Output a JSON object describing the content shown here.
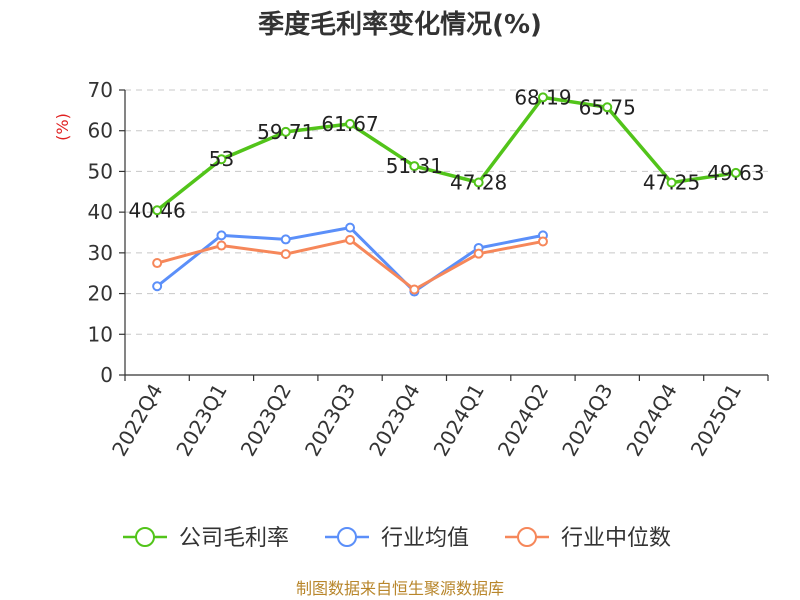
{
  "chart_data": {
    "type": "line",
    "title": "季度毛利率变化情况(%)",
    "ylabel": "(%)",
    "xlabel": "",
    "ylim": [
      0,
      70
    ],
    "yticks": [
      0,
      10,
      20,
      30,
      40,
      50,
      60,
      70
    ],
    "grid": "horizontal dashed",
    "legend_position": "bottom",
    "categories": [
      "2022Q4",
      "2023Q1",
      "2023Q2",
      "2023Q3",
      "2023Q4",
      "2024Q1",
      "2024Q2",
      "2024Q3",
      "2024Q4",
      "2025Q1"
    ],
    "series": [
      {
        "name": "公司毛利率",
        "color": "#52c41a",
        "values": [
          40.46,
          53,
          59.71,
          61.67,
          51.31,
          47.28,
          68.19,
          65.75,
          47.25,
          49.63
        ],
        "labels": [
          "40.46",
          "53",
          "59.71",
          "61.67",
          "51.31",
          "47.28",
          "68.19",
          "65.75",
          "47.25",
          "49.63"
        ]
      },
      {
        "name": "行业均值",
        "color": "#5b8ff9",
        "values": [
          21.8,
          34.3,
          33.3,
          36.2,
          20.5,
          31.2,
          34.3,
          null,
          null,
          null
        ]
      },
      {
        "name": "行业中位数",
        "color": "#f6875a",
        "values": [
          27.5,
          31.8,
          29.7,
          33.2,
          21.0,
          29.8,
          32.8,
          null,
          null,
          null
        ]
      }
    ]
  },
  "source_text": "制图数据来自恒生聚源数据库"
}
